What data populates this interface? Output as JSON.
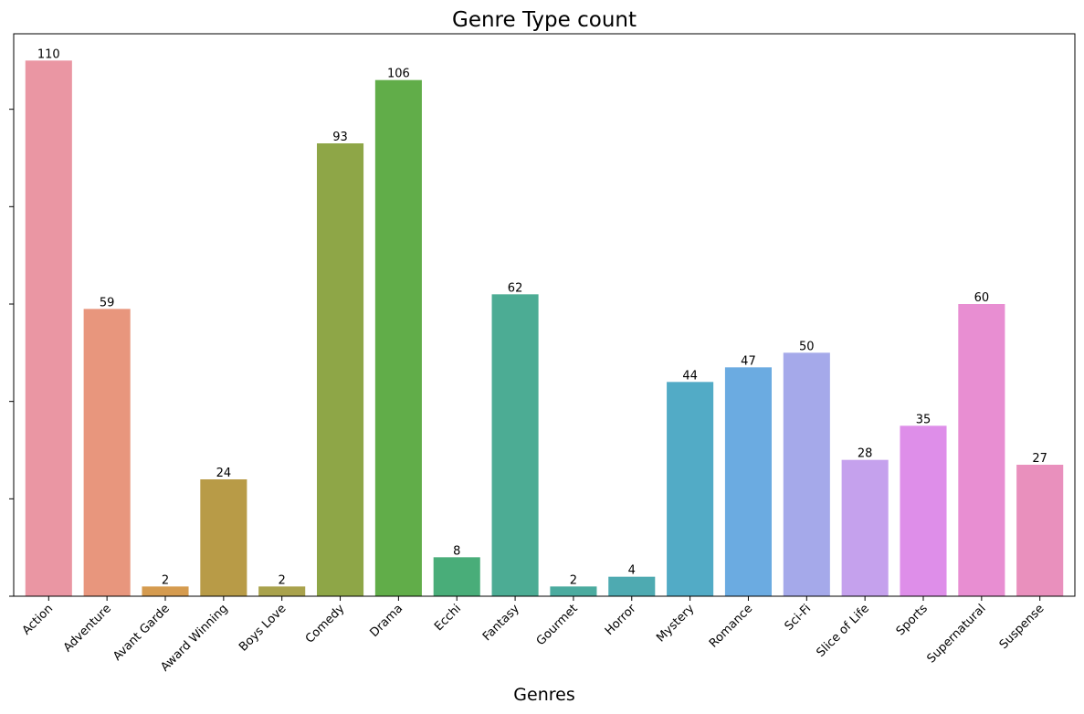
{
  "chart_data": {
    "type": "bar",
    "title": "Genre Type count",
    "xlabel": "Genres",
    "ylabel": "",
    "ylim": [
      0,
      115.5
    ],
    "yticks": [
      0,
      20,
      40,
      60,
      80,
      100
    ],
    "ytick_labels_visible": false,
    "grid": false,
    "legend": "none",
    "categories": [
      "Action",
      "Adventure",
      "Avant Garde",
      "Award Winning",
      "Boys Love",
      "Comedy",
      "Drama",
      "Ecchi",
      "Fantasy",
      "Gourmet",
      "Horror",
      "Mystery",
      "Romance",
      "Sci-Fi",
      "Slice of Life",
      "Sports",
      "Supernatural",
      "Suspense"
    ],
    "values": [
      110,
      59,
      2,
      24,
      2,
      93,
      106,
      8,
      62,
      2,
      4,
      44,
      47,
      50,
      28,
      35,
      60,
      27
    ],
    "colors": [
      "#ea96a3",
      "#e8967d",
      "#d59b4f",
      "#b89b47",
      "#a9a24c",
      "#8ea647",
      "#61ad49",
      "#49ad79",
      "#4cac94",
      "#4bab9f",
      "#4eaab1",
      "#52abc6",
      "#6babe1",
      "#a5a9ea",
      "#c5a1ed",
      "#de8ee9",
      "#e88ed2",
      "#e990bd"
    ]
  }
}
